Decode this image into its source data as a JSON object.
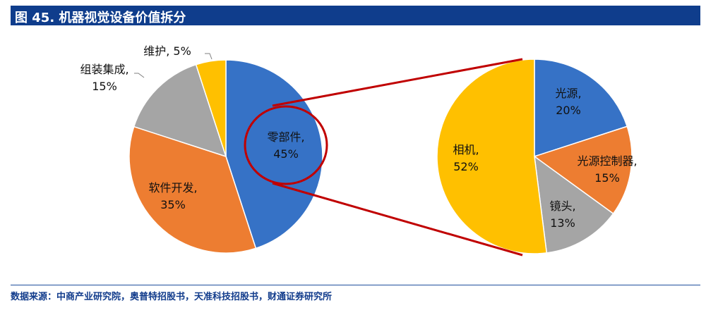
{
  "title": "图 45. 机器视觉设备价值拆分",
  "source": "数据来源：中商产业研究院，奥普特招股书，天准科技招股书，财通证券研究所",
  "chart_data": [
    {
      "type": "pie",
      "slices": [
        {
          "label": "零部件",
          "value": 45,
          "value_text": "45%",
          "color": "#3672c6"
        },
        {
          "label": "软件开发",
          "value": 35,
          "value_text": "35%",
          "color": "#ed7d31"
        },
        {
          "label": "组装集成",
          "value": 15,
          "value_text": "15%",
          "color": "#a5a5a5"
        },
        {
          "label": "维护",
          "value": 5,
          "value_text": "5%",
          "color": "#ffc000"
        }
      ]
    },
    {
      "type": "pie",
      "slices": [
        {
          "label": "光源",
          "value": 20,
          "value_text": "20%",
          "color": "#3672c6"
        },
        {
          "label": "光源控制器",
          "value": 15,
          "value_text": "15%",
          "color": "#ed7d31"
        },
        {
          "label": "镜头",
          "value": 13,
          "value_text": "13%",
          "color": "#a5a5a5"
        },
        {
          "label": "相机",
          "value": 52,
          "value_text": "52%",
          "color": "#ffc000"
        }
      ]
    }
  ],
  "colors": {
    "title_bg": "#0f3d8c",
    "connector": "#c00000",
    "source_text": "#123c8c"
  }
}
